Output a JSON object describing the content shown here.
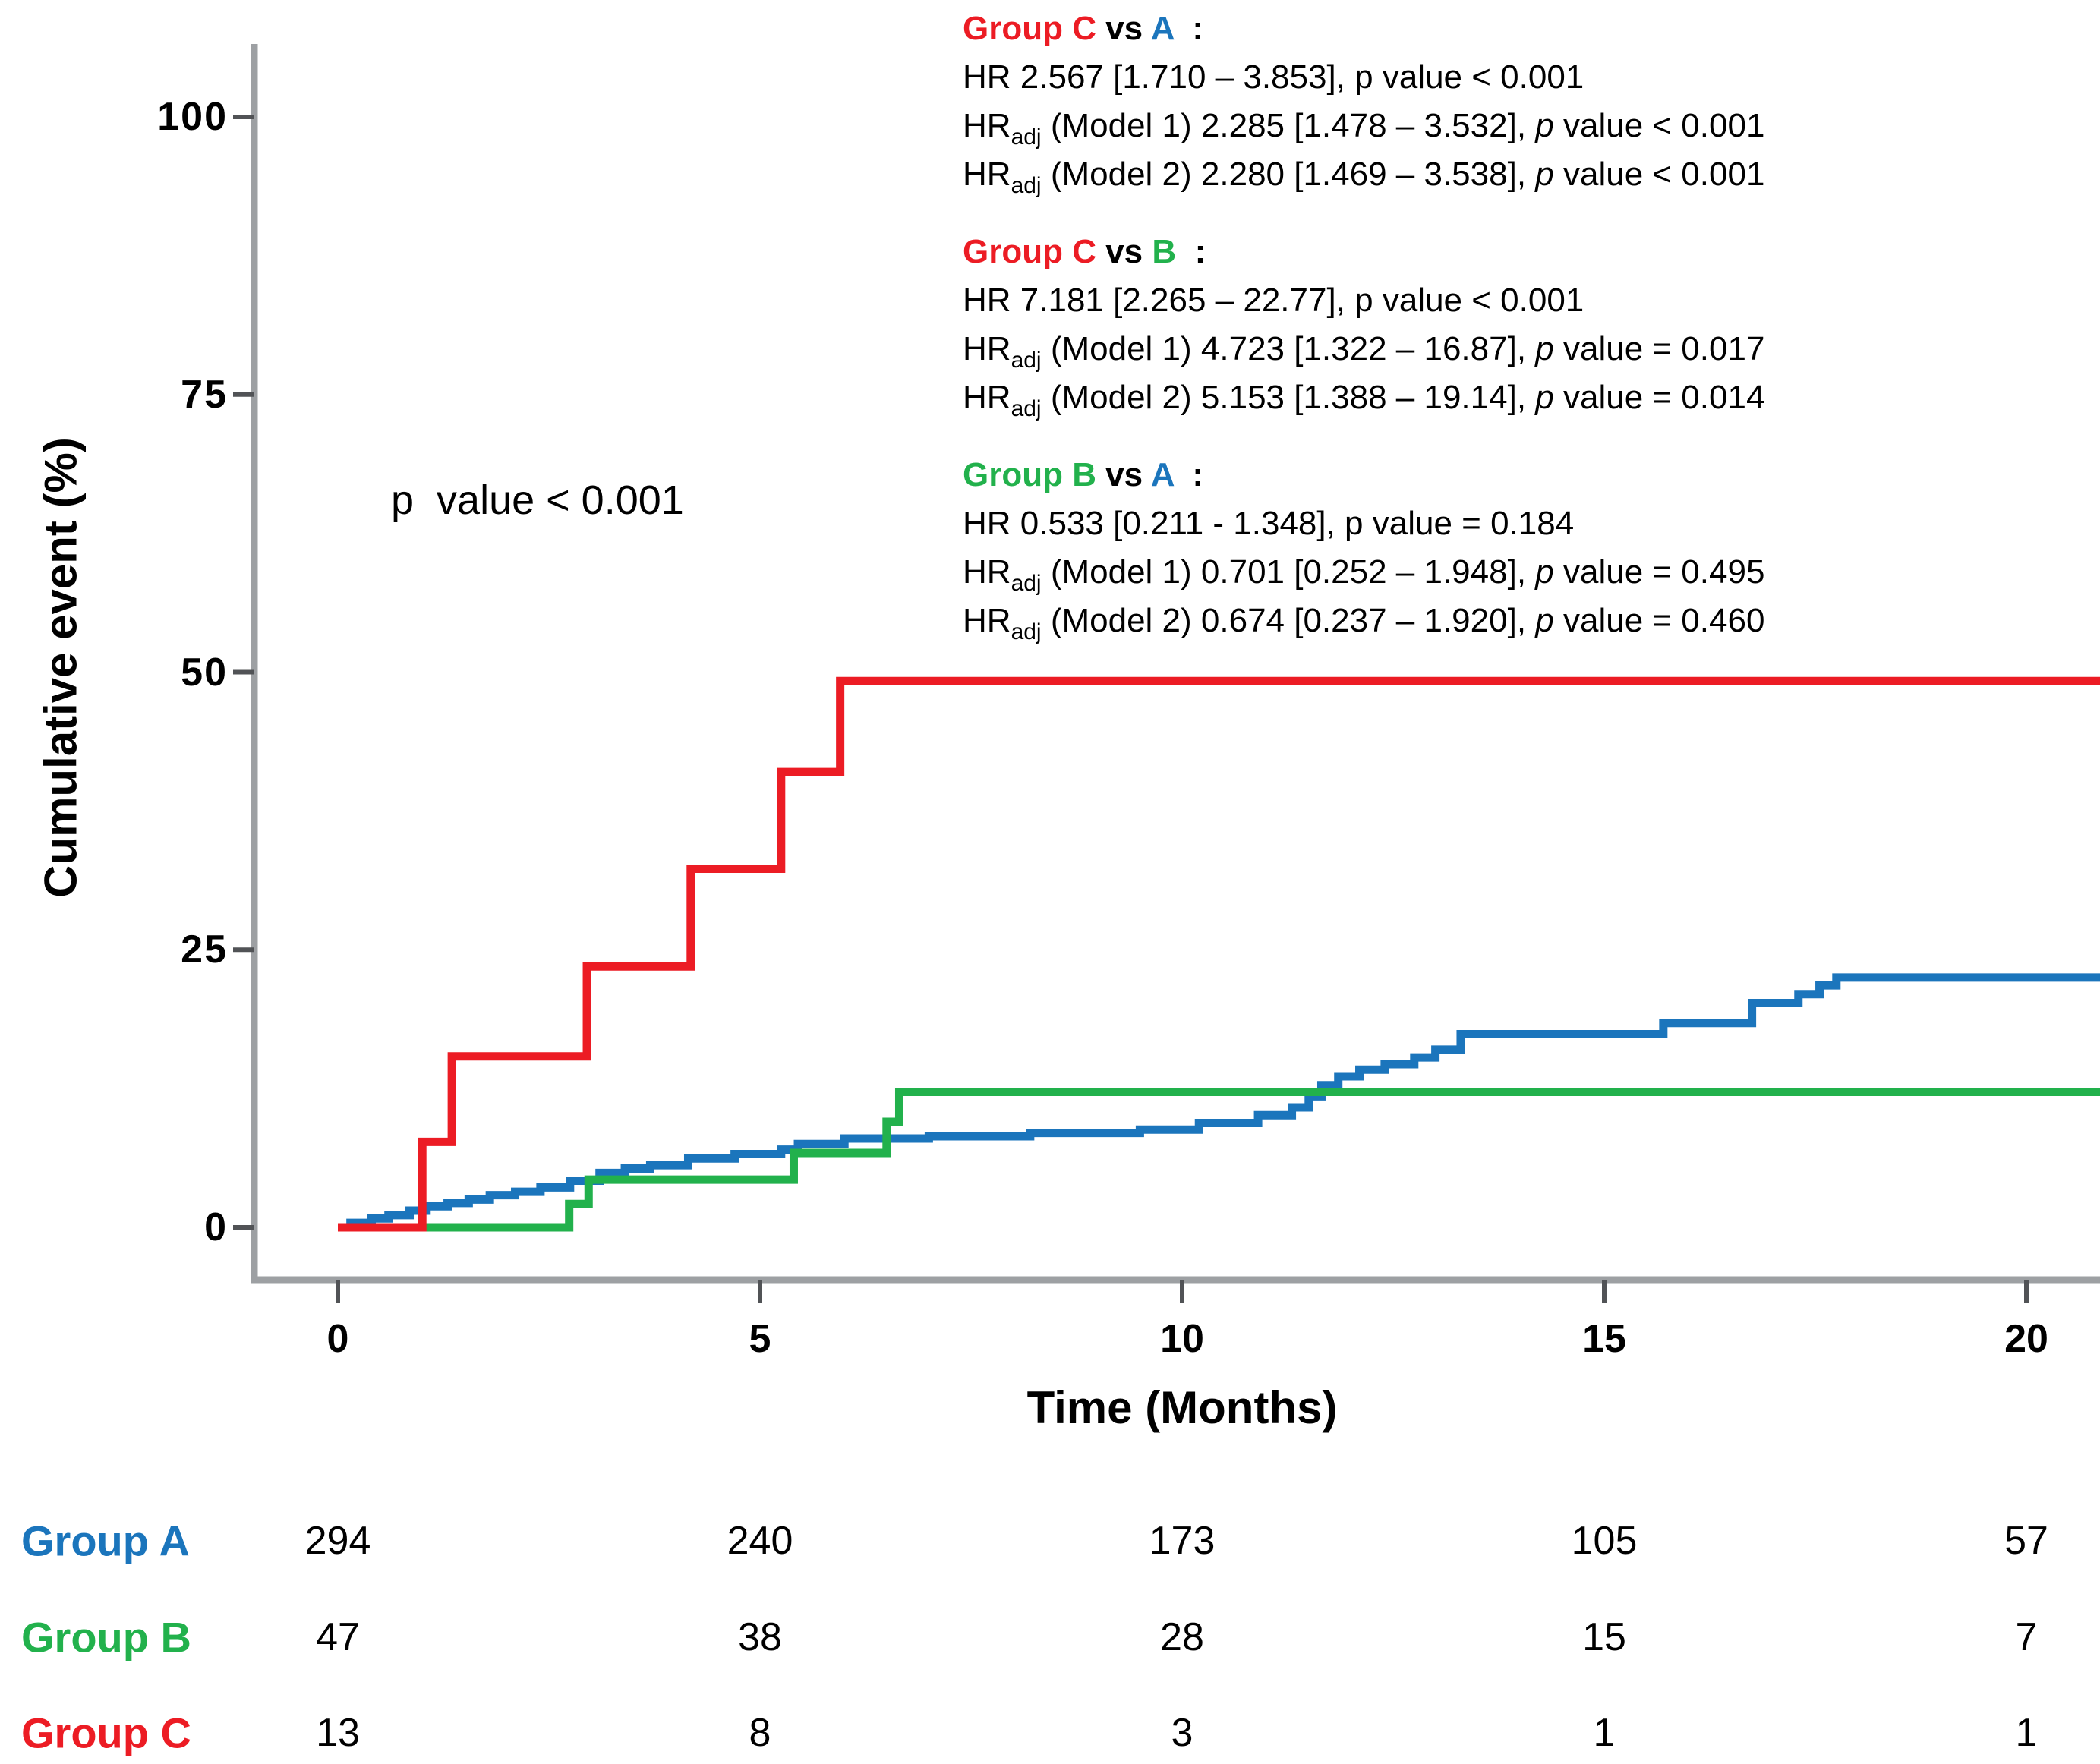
{
  "colors": {
    "group_a_blue": "#1B75BC",
    "group_b_green": "#22B14C",
    "group_c_red": "#EC1C24",
    "axis_line": "#9DA0A3",
    "tick_mark": "#515356",
    "text": "#000000"
  },
  "y_axis": {
    "title": "Cumulative event (%)",
    "ticks": [
      0,
      25,
      50,
      75,
      100
    ]
  },
  "x_axis": {
    "title": "Time (Months)",
    "ticks": [
      0,
      5,
      10,
      15,
      20
    ]
  },
  "plot_annotation": {
    "text": "p  value < 0.001"
  },
  "comparisons": [
    {
      "title": [
        [
          "red",
          "Group C"
        ],
        [
          "k",
          " vs "
        ],
        [
          "blue",
          "A"
        ],
        [
          "k",
          "  :"
        ]
      ],
      "lines": [
        [
          [
            "n",
            "HR 2.567 [1.710 – 3.853], p value < 0.001"
          ]
        ],
        [
          [
            "n",
            "HR"
          ],
          [
            "s",
            "adj"
          ],
          [
            "n",
            " (Model 1) 2.285 [1.478 – 3.532], "
          ],
          [
            "i",
            "p"
          ],
          [
            "n",
            " value < 0.001"
          ]
        ],
        [
          [
            "n",
            "HR"
          ],
          [
            "s",
            "adj"
          ],
          [
            "n",
            " (Model 2) 2.280 [1.469 – 3.538], "
          ],
          [
            "i",
            "p"
          ],
          [
            "n",
            " value < 0.001"
          ]
        ]
      ]
    },
    {
      "title": [
        [
          "red",
          "Group C"
        ],
        [
          "k",
          " vs "
        ],
        [
          "green",
          "B"
        ],
        [
          "k",
          "  :"
        ]
      ],
      "lines": [
        [
          [
            "n",
            "HR 7.181 [2.265 – 22.77], p value < 0.001"
          ]
        ],
        [
          [
            "n",
            "HR"
          ],
          [
            "s",
            "adj"
          ],
          [
            "n",
            " (Model 1) 4.723 [1.322 – 16.87], "
          ],
          [
            "i",
            "p"
          ],
          [
            "n",
            " value = 0.017"
          ]
        ],
        [
          [
            "n",
            "HR"
          ],
          [
            "s",
            "adj"
          ],
          [
            "n",
            " (Model 2) 5.153 [1.388 – 19.14], "
          ],
          [
            "i",
            "p"
          ],
          [
            "n",
            " value = 0.014"
          ]
        ]
      ]
    },
    {
      "title": [
        [
          "green",
          "Group B"
        ],
        [
          "k",
          " vs "
        ],
        [
          "blue",
          "A"
        ],
        [
          "k",
          "  :"
        ]
      ],
      "lines": [
        [
          [
            "n",
            "HR 0.533 [0.211 - 1.348], p value = 0.184"
          ]
        ],
        [
          [
            "n",
            "HR"
          ],
          [
            "s",
            "adj"
          ],
          [
            "n",
            " (Model 1) 0.701 [0.252 – 1.948], "
          ],
          [
            "i",
            "p"
          ],
          [
            "n",
            " value = 0.495"
          ]
        ],
        [
          [
            "n",
            "HR"
          ],
          [
            "s",
            "adj"
          ],
          [
            "n",
            " (Model 2) 0.674 [0.237 – 1.920], "
          ],
          [
            "i",
            "p"
          ],
          [
            "n",
            " value = 0.460"
          ]
        ]
      ]
    }
  ],
  "chart_data": {
    "type": "line",
    "subtype": "kaplan-meier-step",
    "title": "",
    "xlabel": "Time (Months)",
    "ylabel": "Cumulative event (%)",
    "xlim": [
      0,
      20.9
    ],
    "ylim": [
      0,
      105
    ],
    "grid": false,
    "legend_position": "none",
    "series": [
      {
        "name": "Group A",
        "color": "#1B75BC",
        "steps": [
          [
            0.15,
            0.4
          ],
          [
            0.4,
            0.8
          ],
          [
            0.6,
            1.1
          ],
          [
            0.85,
            1.5
          ],
          [
            1.05,
            1.9
          ],
          [
            1.3,
            2.2
          ],
          [
            1.55,
            2.5
          ],
          [
            1.8,
            2.9
          ],
          [
            2.1,
            3.2
          ],
          [
            2.4,
            3.6
          ],
          [
            2.75,
            4.2
          ],
          [
            3.1,
            4.9
          ],
          [
            3.4,
            5.3
          ],
          [
            3.7,
            5.6
          ],
          [
            4.15,
            6.2
          ],
          [
            4.7,
            6.6
          ],
          [
            5.25,
            7.0
          ],
          [
            5.45,
            7.5
          ],
          [
            6.0,
            8.0
          ],
          [
            7.0,
            8.2
          ],
          [
            8.2,
            8.5
          ],
          [
            9.5,
            8.8
          ],
          [
            10.2,
            9.4
          ],
          [
            10.9,
            10.1
          ],
          [
            11.3,
            10.8
          ],
          [
            11.5,
            11.8
          ],
          [
            11.65,
            12.8
          ],
          [
            11.85,
            13.6
          ],
          [
            12.1,
            14.2
          ],
          [
            12.4,
            14.7
          ],
          [
            12.75,
            15.3
          ],
          [
            13.0,
            16.0
          ],
          [
            13.3,
            17.4
          ],
          [
            15.7,
            18.4
          ],
          [
            16.75,
            20.2
          ],
          [
            17.3,
            21.0
          ],
          [
            17.55,
            21.8
          ],
          [
            17.75,
            22.5
          ]
        ]
      },
      {
        "name": "Group B",
        "color": "#22B14C",
        "steps": [
          [
            2.74,
            2.1
          ],
          [
            2.97,
            4.3
          ],
          [
            5.4,
            6.7
          ],
          [
            6.5,
            9.5
          ],
          [
            6.65,
            12.2
          ]
        ]
      },
      {
        "name": "Group C",
        "color": "#EC1C24",
        "steps": [
          [
            1.0,
            7.7
          ],
          [
            1.35,
            15.4
          ],
          [
            2.95,
            23.5
          ],
          [
            4.18,
            32.3
          ],
          [
            5.25,
            41.0
          ],
          [
            5.95,
            49.2
          ]
        ]
      }
    ]
  },
  "risk_table": {
    "time_points": [
      0,
      5,
      10,
      15,
      20
    ],
    "rows": [
      {
        "label": "Group A",
        "color": "#1B75BC",
        "counts": [
          "294",
          "240",
          "173",
          "105",
          "57"
        ]
      },
      {
        "label": "Group B",
        "color": "#22B14C",
        "counts": [
          "47",
          "38",
          "28",
          "15",
          "7"
        ]
      },
      {
        "label": "Group C",
        "color": "#EC1C24",
        "counts": [
          "13",
          "8",
          "3",
          "1",
          "1"
        ]
      }
    ]
  }
}
